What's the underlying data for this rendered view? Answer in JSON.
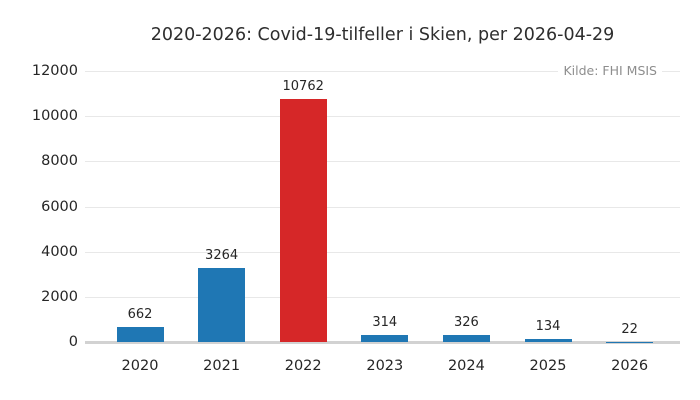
{
  "chart_data": {
    "type": "bar",
    "title": "2020-2026: Covid-19-tilfeller i Skien, per 2026-04-29",
    "annotation": "Kilde: FHI MSIS",
    "categories": [
      "2020",
      "2021",
      "2022",
      "2023",
      "2024",
      "2025",
      "2026"
    ],
    "values": [
      662,
      3264,
      10762,
      314,
      326,
      134,
      22
    ],
    "bar_colors": [
      "#1f77b4",
      "#1f77b4",
      "#d62728",
      "#1f77b4",
      "#1f77b4",
      "#1f77b4",
      "#1f77b4"
    ],
    "highlighted_category": "2022",
    "ylim": [
      0,
      12000
    ],
    "yticks": [
      0,
      2000,
      4000,
      6000,
      8000,
      10000,
      12000
    ],
    "grid": true,
    "legend_position": "none",
    "colors": {
      "bar_default": "#1f77b4",
      "bar_highlight": "#d62728",
      "gridline": "#e8e8e8",
      "baseline": "#d2d2d2",
      "text": "#262626",
      "annotation_text": "#8e8e8e",
      "background": "#ffffff"
    }
  }
}
